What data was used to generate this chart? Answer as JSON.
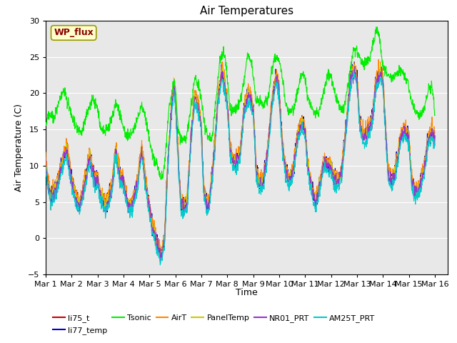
{
  "title": "Air Temperatures",
  "ylabel": "Air Temperature (C)",
  "xlabel": "Time",
  "ylim": [
    -5,
    30
  ],
  "xlim_days": 15.5,
  "annotation_text": "WP_flux",
  "annotation_bbox_fc": "#FFFFCC",
  "annotation_bbox_ec": "#999900",
  "annotation_color": "#880000",
  "background_color": "#E8E8E8",
  "series_colors": {
    "li75_t": "#CC0000",
    "li77_temp": "#0000CC",
    "Tsonic": "#00EE00",
    "AirT": "#FF8800",
    "PanelTemp": "#CCCC00",
    "NR01_PRT": "#9933CC",
    "AM25T_PRT": "#00CCCC"
  },
  "x_tick_labels": [
    "Mar 1",
    "Mar 2",
    "Mar 3",
    "Mar 4",
    "Mar 5",
    "Mar 6",
    "Mar 7",
    "Mar 8",
    "Mar 9",
    "Mar 10",
    "Mar 11",
    "Mar 12",
    "Mar 13",
    "Mar 14",
    "Mar 15",
    "Mar 16"
  ],
  "y_ticks": [
    -5,
    0,
    5,
    10,
    15,
    20,
    25,
    30
  ],
  "grid_color": "#ffffff",
  "title_fontsize": 11,
  "label_fontsize": 9,
  "tick_fontsize": 8,
  "legend_fontsize": 8
}
